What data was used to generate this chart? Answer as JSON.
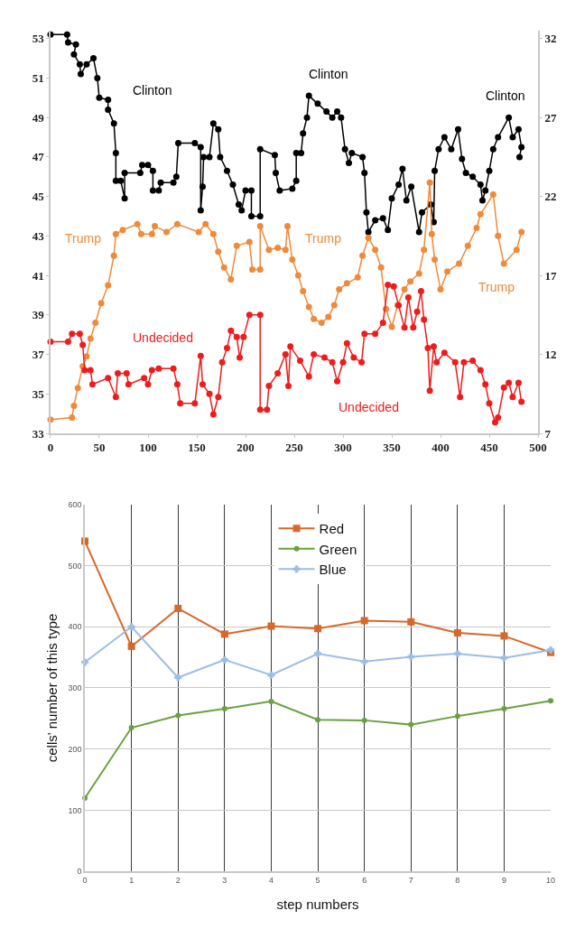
{
  "chart_data": [
    {
      "type": "line",
      "xlim": [
        0,
        500
      ],
      "xticks": [
        0,
        50,
        100,
        150,
        200,
        250,
        300,
        350,
        400,
        450,
        500
      ],
      "ylim": [
        33,
        53.4
      ],
      "yticks": [
        33,
        35,
        37,
        39,
        41,
        43,
        45,
        47,
        49,
        51,
        53
      ],
      "y2lim": [
        7,
        32.5
      ],
      "y2ticks": [
        7,
        12,
        17,
        22,
        27,
        32
      ],
      "grid": false,
      "legend": false,
      "marker": "circle",
      "line_style": "solid",
      "series": [
        {
          "color": "#000000",
          "x": [
            0,
            17,
            18,
            26,
            24,
            30,
            31,
            37,
            44,
            48,
            50,
            59,
            59,
            65,
            67,
            67,
            72,
            76,
            76,
            92,
            94,
            100,
            105,
            105,
            111,
            113,
            126,
            129,
            131,
            148,
            154,
            154,
            156,
            157,
            163,
            167,
            172,
            174,
            181,
            187,
            193,
            196,
            200,
            206,
            206,
            215,
            215,
            230,
            231,
            235,
            248,
            252,
            252,
            257,
            259,
            263,
            265,
            274,
            283,
            289,
            294,
            298,
            302,
            306,
            309,
            320,
            322,
            324,
            326,
            333,
            341,
            346,
            350,
            357,
            361,
            365,
            370,
            378,
            381,
            390,
            393,
            394,
            398,
            404,
            411,
            418,
            422,
            426,
            433,
            441,
            443,
            446,
            450,
            454,
            459,
            470,
            474,
            480,
            483,
            481
          ],
          "values": [
            53.2,
            53.2,
            52.8,
            52.7,
            52.2,
            51.7,
            51.2,
            51.7,
            52.0,
            51.0,
            50.0,
            49.9,
            49.4,
            48.7,
            47.2,
            45.8,
            45.8,
            44.9,
            46.2,
            46.2,
            46.6,
            46.6,
            46.3,
            45.3,
            45.3,
            45.7,
            45.7,
            46.0,
            47.7,
            47.7,
            47.5,
            44.3,
            45.5,
            47.0,
            47.0,
            48.7,
            48.4,
            47.0,
            46.3,
            45.6,
            44.6,
            44.3,
            45.3,
            45.3,
            44.0,
            44.0,
            47.4,
            47.1,
            46.2,
            45.3,
            45.4,
            45.8,
            47.2,
            47.2,
            48.2,
            49.0,
            50.1,
            49.7,
            49.3,
            49.0,
            49.3,
            49.0,
            47.4,
            46.7,
            47.2,
            47.0,
            46.2,
            44.2,
            43.2,
            43.8,
            43.9,
            43.3,
            44.9,
            45.6,
            46.4,
            44.8,
            45.5,
            43.2,
            44.2,
            44.6,
            43.7,
            46.3,
            47.4,
            48.0,
            47.4,
            48.4,
            46.9,
            46.2,
            46.0,
            45.6,
            44.8,
            45.3,
            46.3,
            47.4,
            48.0,
            49.0,
            48.0,
            48.4,
            47.5,
            47.0
          ]
        },
        {
          "color": "#ef8a3a",
          "x": [
            0,
            22,
            24,
            28,
            33,
            37,
            41,
            46,
            52,
            59,
            65,
            67,
            74,
            89,
            93,
            104,
            107,
            119,
            130,
            152,
            159,
            167,
            172,
            178,
            185,
            191,
            204,
            207,
            215,
            215,
            224,
            233,
            241,
            243,
            248,
            254,
            259,
            265,
            270,
            278,
            285,
            291,
            296,
            304,
            315,
            320,
            326,
            333,
            339,
            344,
            350,
            356,
            363,
            369,
            378,
            383,
            389,
            391,
            394,
            400,
            407,
            419,
            428,
            437,
            441,
            454,
            459,
            465,
            478,
            483
          ],
          "values": [
            33.7,
            33.8,
            34.4,
            35.3,
            36.4,
            36.9,
            37.8,
            38.6,
            39.6,
            40.5,
            42.0,
            43.1,
            43.3,
            43.6,
            43.1,
            43.1,
            43.5,
            43.2,
            43.6,
            43.2,
            43.6,
            43.1,
            42.2,
            41.4,
            40.8,
            42.5,
            42.7,
            41.3,
            41.3,
            43.5,
            42.3,
            42.4,
            42.3,
            43.5,
            41.8,
            41.0,
            40.2,
            39.4,
            38.8,
            38.6,
            38.9,
            39.5,
            40.3,
            40.6,
            40.9,
            42.0,
            42.9,
            42.3,
            41.4,
            39.3,
            38.4,
            39.5,
            40.3,
            40.7,
            41.1,
            42.3,
            45.7,
            43.1,
            41.8,
            40.3,
            41.2,
            41.6,
            42.5,
            43.4,
            44.1,
            45.1,
            43.0,
            41.6,
            42.3,
            43.2
          ]
        },
        {
          "color": "#ee1c1c",
          "axis": "y2",
          "x": [
            0,
            18,
            22,
            30,
            33,
            35,
            41,
            43,
            59,
            67,
            69,
            78,
            80,
            96,
            100,
            104,
            111,
            126,
            130,
            133,
            148,
            154,
            156,
            163,
            167,
            172,
            176,
            181,
            185,
            191,
            194,
            198,
            204,
            215,
            215,
            222,
            224,
            233,
            241,
            244,
            246,
            256,
            265,
            270,
            281,
            289,
            294,
            300,
            304,
            311,
            319,
            322,
            333,
            341,
            346,
            352,
            357,
            363,
            367,
            372,
            376,
            380,
            383,
            387,
            389,
            393,
            396,
            404,
            415,
            420,
            424,
            433,
            441,
            446,
            450,
            456,
            459,
            465,
            470,
            474,
            480,
            483
          ],
          "values": [
            12.8,
            12.8,
            13.3,
            13.3,
            12.6,
            11.0,
            11.0,
            10.1,
            10.5,
            9.3,
            10.8,
            10.8,
            10.1,
            10.5,
            10.1,
            11.0,
            11.1,
            11.1,
            10.1,
            8.9,
            8.9,
            11.9,
            10.1,
            9.5,
            8.2,
            9.3,
            11.5,
            12.4,
            13.5,
            13.1,
            11.8,
            13.1,
            14.5,
            14.5,
            8.5,
            8.5,
            10.0,
            10.8,
            12.0,
            10.0,
            12.5,
            11.6,
            10.6,
            12.0,
            11.8,
            11.5,
            10.3,
            11.5,
            12.7,
            11.8,
            11.5,
            13.3,
            13.3,
            14.0,
            16.4,
            16.3,
            15.1,
            13.7,
            15.6,
            13.7,
            14.7,
            16.0,
            14.2,
            12.4,
            9.7,
            12.5,
            11.5,
            12.1,
            11.5,
            9.3,
            11.5,
            11.6,
            11.0,
            10.1,
            8.9,
            7.7,
            8.0,
            9.9,
            10.2,
            9.3,
            10.2,
            9.0
          ]
        }
      ],
      "annotations": [
        "Clinton",
        "Clinton",
        "Clinton",
        "Trump",
        "Trump",
        "Trump",
        "Undecided",
        "Undecided"
      ]
    },
    {
      "type": "line",
      "xlabel": "step numbers",
      "ylabel": "cells' number of this type",
      "x": [
        0,
        1,
        2,
        3,
        4,
        5,
        6,
        7,
        8,
        9,
        10
      ],
      "xlim": [
        0,
        10
      ],
      "xticks": [
        0,
        1,
        2,
        3,
        4,
        5,
        6,
        7,
        8,
        9,
        10
      ],
      "ylim": [
        0,
        600
      ],
      "yticks": [
        0,
        100,
        200,
        300,
        400,
        500,
        600
      ],
      "grid": true,
      "legend": "top",
      "line_style": "solid",
      "series": [
        {
          "name": "Red",
          "color": "#d8682a",
          "marker": "square",
          "values": [
            540,
            368,
            430,
            388,
            401,
            397,
            410,
            408,
            390,
            385,
            358
          ]
        },
        {
          "name": "Green",
          "color": "#6aa13e",
          "marker": "circle",
          "values": [
            120,
            235,
            255,
            266,
            278,
            248,
            247,
            240,
            254,
            266,
            279
          ]
        },
        {
          "name": "Blue",
          "color": "#9dbde6",
          "marker": "cross",
          "values": [
            342,
            400,
            317,
            346,
            321,
            356,
            343,
            351,
            356,
            349,
            362
          ]
        }
      ]
    }
  ]
}
